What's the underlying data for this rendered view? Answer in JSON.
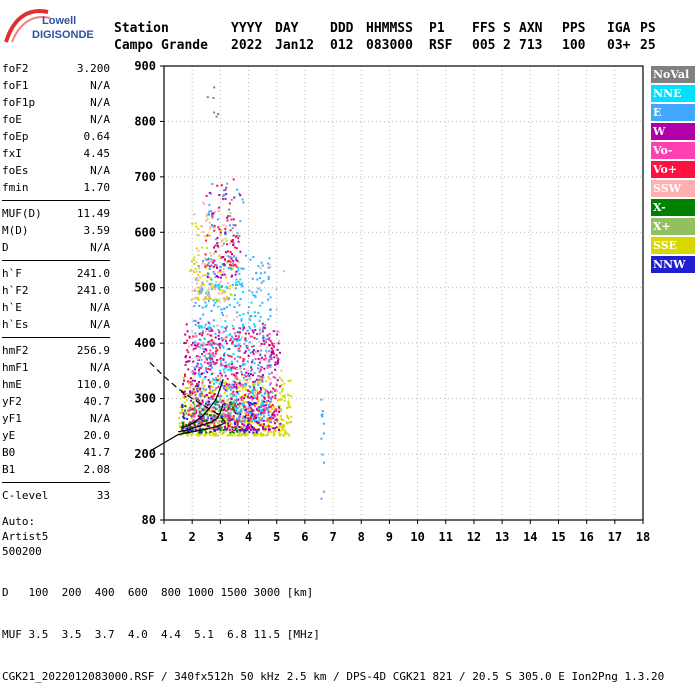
{
  "logo": {
    "brand": "Lowell",
    "product": "DIGISONDE"
  },
  "header": {
    "cols": [
      {
        "label": "Station",
        "value": "Campo Grande"
      },
      {
        "label": "YYYY",
        "value": "2022"
      },
      {
        "label": "DAY",
        "value": "Jan12"
      },
      {
        "label": "DDD",
        "value": "012"
      },
      {
        "label": "HHMMSS",
        "value": "083000"
      },
      {
        "label": "P1",
        "value": "RSF"
      },
      {
        "label": "FFS",
        "value": "005"
      },
      {
        "label": "S",
        "value": "2"
      },
      {
        "label": "AXN",
        "value": "713"
      },
      {
        "label": "PPS",
        "value": "100"
      },
      {
        "label": "IGA",
        "value": "03+"
      },
      {
        "label": "PS",
        "value": "25"
      }
    ]
  },
  "params": {
    "group1": [
      {
        "label": "foF2",
        "value": "3.200"
      },
      {
        "label": "foF1",
        "value": "N/A"
      },
      {
        "label": "foF1p",
        "value": "N/A"
      },
      {
        "label": "foE",
        "value": "N/A"
      },
      {
        "label": "foEp",
        "value": "0.64"
      },
      {
        "label": "fxI",
        "value": "4.45"
      },
      {
        "label": "foEs",
        "value": "N/A"
      },
      {
        "label": "fmin",
        "value": "1.70"
      }
    ],
    "group2": [
      {
        "label": "MUF(D)",
        "value": "11.49"
      },
      {
        "label": "M(D)",
        "value": "3.59"
      },
      {
        "label": "D",
        "value": "N/A"
      }
    ],
    "group3": [
      {
        "label": "h`F",
        "value": "241.0"
      },
      {
        "label": "h`F2",
        "value": "241.0"
      },
      {
        "label": "h`E",
        "value": "N/A"
      },
      {
        "label": "h`Es",
        "value": "N/A"
      }
    ],
    "group4": [
      {
        "label": "hmF2",
        "value": "256.9"
      },
      {
        "label": "hmF1",
        "value": "N/A"
      },
      {
        "label": "hmE",
        "value": "110.0"
      },
      {
        "label": "yF2",
        "value": "40.7"
      },
      {
        "label": "yF1",
        "value": "N/A"
      },
      {
        "label": "yE",
        "value": "20.0"
      },
      {
        "label": "B0",
        "value": "41.7"
      },
      {
        "label": "B1",
        "value": "2.08"
      }
    ],
    "clevel": {
      "label": "C-level",
      "value": "33"
    },
    "scaling": {
      "line1": "Auto:",
      "line2": "Artist5",
      "line3": "500200"
    }
  },
  "legend": [
    {
      "label": "NoVal",
      "color": "#808080"
    },
    {
      "label": "NNE",
      "color": "#00e0ff"
    },
    {
      "label": "E",
      "color": "#40a8ff"
    },
    {
      "label": "W",
      "color": "#b000a8"
    },
    {
      "label": "Vo-",
      "color": "#ff40b0"
    },
    {
      "label": "Vo+",
      "color": "#ff1040"
    },
    {
      "label": "SSW",
      "color": "#ffb0b0"
    },
    {
      "label": "X-",
      "color": "#008000"
    },
    {
      "label": "X+",
      "color": "#90c060"
    },
    {
      "label": "SSE",
      "color": "#d8d800"
    },
    {
      "label": "NNW",
      "color": "#2020d0"
    }
  ],
  "chart_data": {
    "type": "scatter",
    "xlim": [
      1,
      18
    ],
    "ylim": [
      80,
      900
    ],
    "x_ticks": [
      1,
      2,
      3,
      4,
      5,
      6,
      7,
      8,
      9,
      10,
      11,
      12,
      13,
      14,
      15,
      16,
      17,
      18
    ],
    "y_ticks": [
      80,
      200,
      300,
      400,
      500,
      600,
      700,
      800,
      900
    ],
    "grid": "dotted",
    "traces": {
      "o_trace": [
        [
          1.6,
          248
        ],
        [
          1.8,
          250
        ],
        [
          2.0,
          255
        ],
        [
          2.2,
          262
        ],
        [
          2.4,
          270
        ],
        [
          2.6,
          282
        ],
        [
          2.8,
          295
        ],
        [
          2.9,
          305
        ],
        [
          3.0,
          320
        ],
        [
          3.1,
          335
        ]
      ],
      "x_trace": [
        [
          1.5,
          240
        ],
        [
          1.8,
          243
        ],
        [
          2.1,
          248
        ],
        [
          2.4,
          253
        ],
        [
          2.7,
          258
        ],
        [
          2.9,
          265
        ],
        [
          3.0,
          275
        ],
        [
          3.1,
          290
        ]
      ],
      "profile": [
        [
          0.5,
          205
        ],
        [
          1.0,
          220
        ],
        [
          1.5,
          235
        ],
        [
          2.0,
          240
        ],
        [
          2.5,
          245
        ],
        [
          2.9,
          250
        ],
        [
          3.2,
          256.9
        ]
      ],
      "profile_extrapolated": [
        [
          0.5,
          365
        ],
        [
          1.0,
          340
        ],
        [
          1.5,
          318
        ],
        [
          2.0,
          300
        ],
        [
          2.5,
          285
        ],
        [
          2.9,
          272
        ],
        [
          3.2,
          256.9
        ]
      ]
    },
    "clusters": [
      {
        "color": "#d8d800",
        "fmin": 1.5,
        "fmax": 5.5,
        "hmin": 235,
        "hmax": 340,
        "n": 520
      },
      {
        "color": "#b000a8",
        "fmin": 1.6,
        "fmax": 5.1,
        "hmin": 245,
        "hmax": 440,
        "n": 420
      },
      {
        "color": "#40a8ff",
        "fmin": 2.0,
        "fmax": 4.8,
        "hmin": 260,
        "hmax": 560,
        "n": 380
      },
      {
        "color": "#00e0ff",
        "fmin": 2.2,
        "fmax": 4.5,
        "hmin": 280,
        "hmax": 520,
        "n": 150
      },
      {
        "color": "#ff1040",
        "fmin": 1.7,
        "fmax": 5.0,
        "hmin": 250,
        "hmax": 430,
        "n": 200
      },
      {
        "color": "#ff40b0",
        "fmin": 1.8,
        "fmax": 5.0,
        "hmin": 260,
        "hmax": 420,
        "n": 140
      },
      {
        "color": "#ffb0b0",
        "fmin": 1.8,
        "fmax": 5.3,
        "hmin": 280,
        "hmax": 560,
        "n": 90
      },
      {
        "color": "#008000",
        "fmin": 1.6,
        "fmax": 3.6,
        "hmin": 240,
        "hmax": 300,
        "n": 80
      },
      {
        "color": "#90c060",
        "fmin": 1.7,
        "fmax": 3.8,
        "hmin": 240,
        "hmax": 310,
        "n": 60
      },
      {
        "color": "#2020d0",
        "fmin": 1.6,
        "fmax": 4.4,
        "hmin": 240,
        "hmax": 330,
        "n": 70
      },
      {
        "color": "#d8d800",
        "fmin": 1.9,
        "fmax": 3.4,
        "hmin": 480,
        "hmax": 640,
        "n": 90
      },
      {
        "color": "#ffb0b0",
        "fmin": 2.0,
        "fmax": 3.4,
        "hmin": 480,
        "hmax": 660,
        "n": 70
      },
      {
        "color": "#ff1040",
        "fmin": 2.4,
        "fmax": 3.6,
        "hmin": 540,
        "hmax": 700,
        "n": 60
      },
      {
        "color": "#40a8ff",
        "fmin": 2.5,
        "fmax": 3.8,
        "hmin": 500,
        "hmax": 690,
        "n": 60
      },
      {
        "color": "#b000a8",
        "fmin": 2.5,
        "fmax": 3.7,
        "hmin": 520,
        "hmax": 680,
        "n": 40
      },
      {
        "color": "#808080",
        "fmin": 2.5,
        "fmax": 2.9,
        "hmin": 800,
        "hmax": 870,
        "n": 6
      },
      {
        "color": "#40a8ff",
        "fmin": 6.55,
        "fmax": 6.65,
        "hmin": 120,
        "hmax": 300,
        "n": 12
      }
    ]
  },
  "footer": {
    "d_label": "D",
    "d_values": "100  200  400  600  800 1000 1500 3000 [km]",
    "muf_label": "MUF",
    "muf_values": "3.5  3.5  3.7  4.0  4.4  5.1  6.8 11.5 [MHz]",
    "info": "CGK21_2022012083000.RSF / 340fx512h 50 kHz 2.5 km / DPS-4D CGK21 821 / 20.5 S 305.0 E Ion2Png 1.3.20"
  }
}
